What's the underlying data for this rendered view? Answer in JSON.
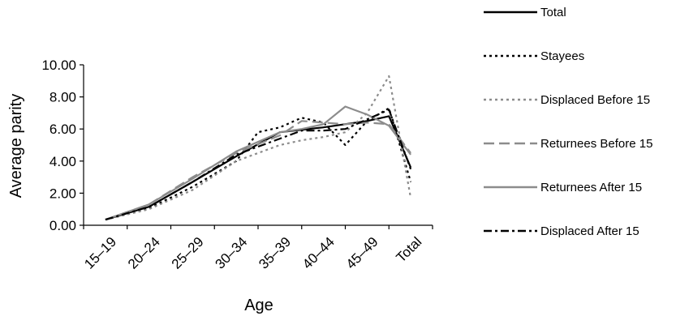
{
  "chart_data": {
    "type": "line",
    "xlabel": "Age",
    "ylabel": "Average parity",
    "ylim": [
      0,
      10
    ],
    "yticks": [
      "0.00",
      "2.00",
      "4.00",
      "6.00",
      "8.00",
      "10.00"
    ],
    "categories": [
      "15–19",
      "20–24",
      "25–29",
      "30–34",
      "35–39",
      "40–44",
      "45–49",
      "Total"
    ],
    "grid": false,
    "legend_position": "right",
    "series": [
      {
        "name": "Total",
        "color": "#000000",
        "dash": "solid",
        "x": [
          0.5,
          1.5,
          2.5,
          3.5,
          4.5,
          5.5,
          6.5,
          7.0,
          7.5
        ],
        "values": [
          0.35,
          1.15,
          2.7,
          4.3,
          5.8,
          6.1,
          6.5,
          6.8,
          3.6
        ]
      },
      {
        "name": "Stayees",
        "color": "#000000",
        "dash": "dotted",
        "x": [
          0.5,
          1.5,
          2.5,
          3.5,
          4.0,
          4.5,
          5.0,
          5.5,
          6.0,
          6.5,
          7.0,
          7.5
        ],
        "values": [
          0.35,
          1.05,
          2.4,
          4.0,
          5.8,
          6.1,
          6.7,
          6.4,
          5.0,
          6.5,
          7.3,
          2.7
        ]
      },
      {
        "name": "Displaced Before 15",
        "color": "#8c8c8c",
        "dash": "dotted",
        "x": [
          0.5,
          1.5,
          2.5,
          3.5,
          4.5,
          5.0,
          5.5,
          6.0,
          6.5,
          7.0,
          7.5
        ],
        "values": [
          0.35,
          1.0,
          2.2,
          4.0,
          5.0,
          5.3,
          5.5,
          5.8,
          7.0,
          9.3,
          1.7
        ]
      },
      {
        "name": "Returnees Before 15",
        "color": "#8c8c8c",
        "dash": "longdash",
        "x": [
          0.5,
          1.5,
          2.5,
          3.5,
          4.5,
          5.0,
          5.5,
          6.0,
          6.5,
          7.0,
          7.5
        ],
        "values": [
          0.35,
          1.3,
          3.0,
          4.5,
          5.6,
          6.5,
          6.4,
          6.3,
          6.4,
          6.3,
          4.5
        ]
      },
      {
        "name": "Returnees After 15",
        "color": "#8c8c8c",
        "dash": "solid",
        "x": [
          0.5,
          1.5,
          2.5,
          3.5,
          4.5,
          5.0,
          5.5,
          6.0,
          6.5,
          7.0,
          7.5
        ],
        "values": [
          0.35,
          1.3,
          2.9,
          4.6,
          5.8,
          6.0,
          6.3,
          7.4,
          6.9,
          6.2,
          4.4
        ]
      },
      {
        "name": "Displaced After 15",
        "color": "#000000",
        "dash": "dashdot",
        "x": [
          0.5,
          1.5,
          2.5,
          3.5,
          4.5,
          5.0,
          5.5,
          6.0,
          6.5,
          7.0,
          7.5
        ],
        "values": [
          0.35,
          1.15,
          2.7,
          4.4,
          5.4,
          5.9,
          5.9,
          6.0,
          6.6,
          7.2,
          3.5
        ]
      }
    ]
  }
}
